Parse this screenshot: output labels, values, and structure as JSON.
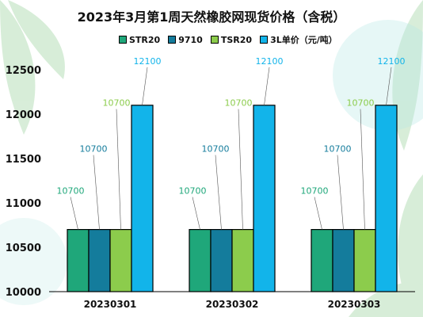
{
  "chart_data": {
    "type": "bar",
    "title": "2023年3月第1周天然橡胶网现货价格（含税）",
    "categories": [
      "20230301",
      "20230302",
      "20230303"
    ],
    "series": [
      {
        "name": "STR20",
        "color": "#1fa77a",
        "values": [
          10700,
          10700,
          10700
        ]
      },
      {
        "name": "9710",
        "color": "#147c9c",
        "values": [
          10700,
          10700,
          10700
        ]
      },
      {
        "name": "TSR20",
        "color": "#8ccc4c",
        "values": [
          10700,
          10700,
          10700
        ]
      },
      {
        "name": "3L单价（元/吨）",
        "color": "#12b4ea",
        "values": [
          12100,
          12100,
          12100
        ]
      }
    ],
    "ylim": [
      10000,
      12500
    ],
    "yticks": [
      10000,
      10500,
      11000,
      11500,
      12000,
      12500
    ],
    "xlabel": "",
    "ylabel": "",
    "grid": false,
    "legend_position": "top"
  }
}
